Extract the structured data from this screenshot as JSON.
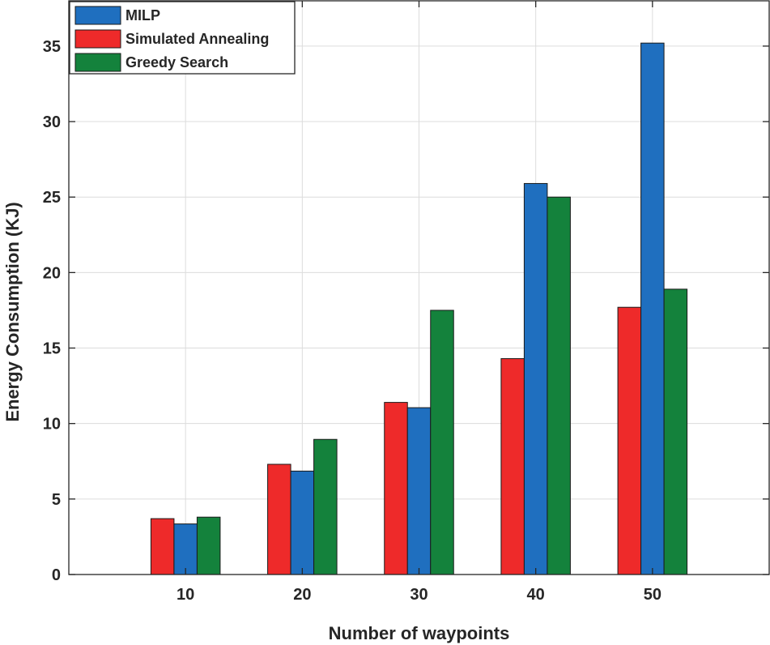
{
  "chart_data": {
    "type": "bar",
    "categories": [
      "10",
      "20",
      "30",
      "40",
      "50"
    ],
    "series": [
      {
        "name": "Simulated Annealing",
        "color": "#ee2a2a",
        "values": [
          3.7,
          7.3,
          11.4,
          14.3,
          17.7
        ]
      },
      {
        "name": "MILP",
        "color": "#1f6fbf",
        "values": [
          3.35,
          6.85,
          11.05,
          25.9,
          35.2
        ]
      },
      {
        "name": "Greedy Search",
        "color": "#14823c",
        "values": [
          3.8,
          8.95,
          17.5,
          25.0,
          18.9
        ]
      }
    ],
    "legend_order": [
      "MILP",
      "Simulated Annealing",
      "Greedy Search"
    ],
    "legend_position": "top-left",
    "xlabel": "Number of waypoints",
    "ylabel": "Energy Consumption (KJ)",
    "ylim": [
      0,
      38
    ],
    "xlim": [
      0,
      60
    ],
    "yticks": [
      0,
      5,
      10,
      15,
      20,
      25,
      30,
      35
    ],
    "grid": true
  }
}
